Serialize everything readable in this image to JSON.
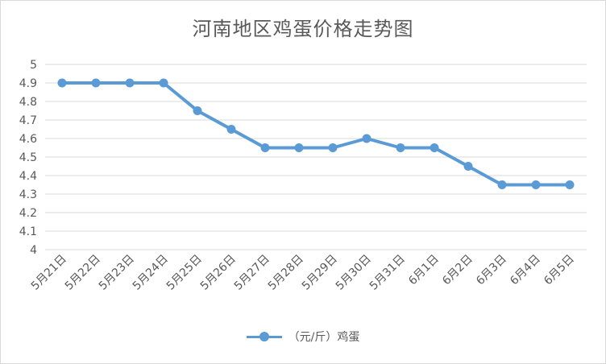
{
  "chart_data": {
    "type": "line",
    "title": "河南地区鸡蛋价格走势图",
    "categories": [
      "5月21日",
      "5月22日",
      "5月23日",
      "5月24日",
      "5月25日",
      "5月26日",
      "5月27日",
      "5月28日",
      "5月29日",
      "5月30日",
      "5月31日",
      "6月1日",
      "6月2日",
      "6月3日",
      "6月4日",
      "6月5日"
    ],
    "series": [
      {
        "name": "（元/斤）鸡蛋",
        "values": [
          4.9,
          4.9,
          4.9,
          4.9,
          4.75,
          4.65,
          4.55,
          4.55,
          4.55,
          4.6,
          4.55,
          4.55,
          4.45,
          4.35,
          4.35,
          4.35
        ],
        "color": "#5b9bd5"
      }
    ],
    "ylim": [
      4,
      5
    ],
    "ytick_labels": [
      "4",
      "4.1",
      "4.2",
      "4.3",
      "4.4",
      "4.5",
      "4.6",
      "4.7",
      "4.8",
      "4.9",
      "5"
    ],
    "grid": true,
    "legend_position": "bottom"
  }
}
